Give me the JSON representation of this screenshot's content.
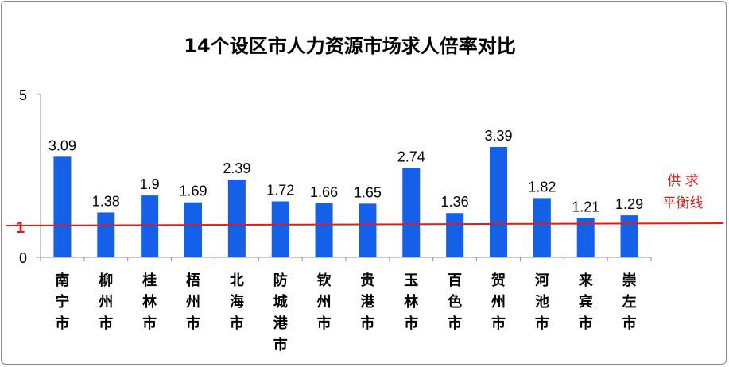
{
  "chart_data": {
    "type": "bar",
    "title": "14个设区市人力资源市场求人倍率对比",
    "categories": [
      "南宁市",
      "柳州市",
      "桂林市",
      "梧州市",
      "北海市",
      "防城港市",
      "钦州市",
      "贵港市",
      "玉林市",
      "百色市",
      "贺州市",
      "河池市",
      "来宾市",
      "崇左市"
    ],
    "values": [
      3.09,
      1.38,
      1.9,
      1.69,
      2.39,
      1.72,
      1.66,
      1.65,
      2.74,
      1.36,
      3.39,
      1.82,
      1.21,
      1.29
    ],
    "value_labels": [
      "3.09",
      "1.38",
      "1.9",
      "1.69",
      "2.39",
      "1.72",
      "1.66",
      "1.65",
      "2.74",
      "1.36",
      "3.39",
      "1.82",
      "1.21",
      "1.29"
    ],
    "ylim": [
      0,
      5
    ],
    "y_ticks": [
      "0",
      "5"
    ],
    "reference_line": {
      "value": 1,
      "label": "1",
      "color": "#e31a1a",
      "legend": [
        "供 求",
        "平衡线"
      ]
    },
    "bar_color": "#1560e8",
    "grid": false,
    "legend_position": "right"
  }
}
